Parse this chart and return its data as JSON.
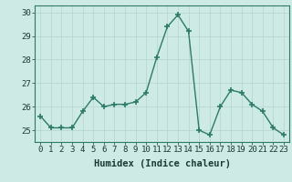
{
  "x": [
    0,
    1,
    2,
    3,
    4,
    5,
    6,
    7,
    8,
    9,
    10,
    11,
    12,
    13,
    14,
    15,
    16,
    17,
    18,
    19,
    20,
    21,
    22,
    23
  ],
  "y": [
    25.6,
    25.1,
    25.1,
    25.1,
    25.8,
    26.4,
    26.0,
    26.1,
    26.1,
    26.2,
    26.6,
    28.1,
    29.4,
    29.9,
    29.2,
    25.0,
    24.8,
    26.0,
    26.7,
    26.6,
    26.1,
    25.8,
    25.1,
    24.8
  ],
  "line_color": "#2d7a68",
  "marker": "+",
  "marker_size": 4,
  "bg_color": "#cdeae4",
  "grid_color": "#b8d8d2",
  "xlabel": "Humidex (Indice chaleur)",
  "ylim": [
    24.5,
    30.3
  ],
  "xlim": [
    -0.5,
    23.5
  ],
  "yticks": [
    25,
    26,
    27,
    28,
    29,
    30
  ],
  "xticks": [
    0,
    1,
    2,
    3,
    4,
    5,
    6,
    7,
    8,
    9,
    10,
    11,
    12,
    13,
    14,
    15,
    16,
    17,
    18,
    19,
    20,
    21,
    22,
    23
  ],
  "tick_fontsize": 6.5,
  "xlabel_fontsize": 7.5,
  "linewidth": 1.0,
  "marker_thickness": 1.2
}
